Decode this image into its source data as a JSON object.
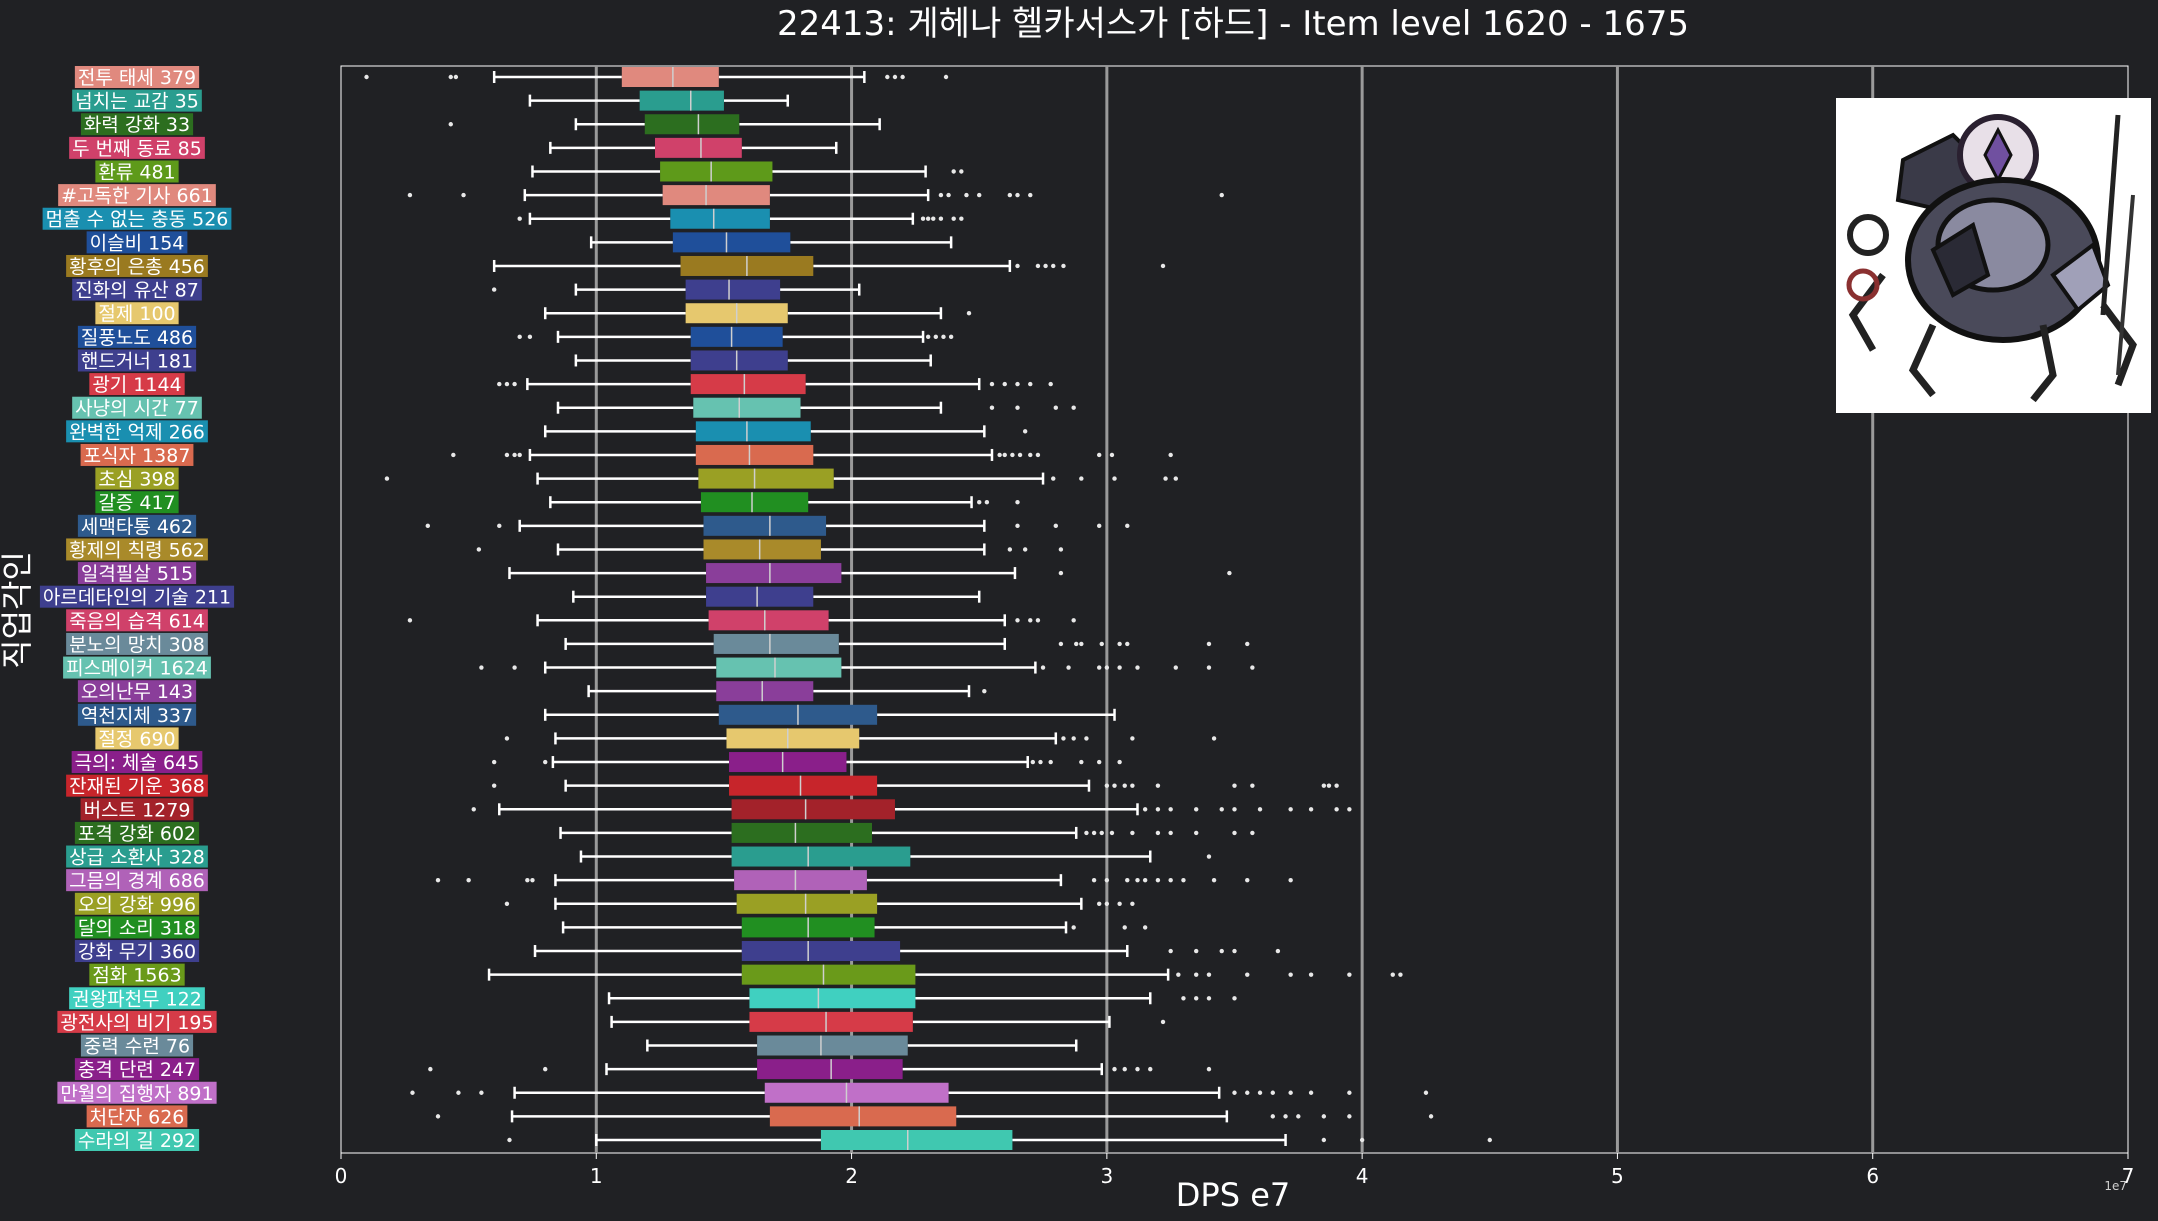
{
  "chart_data": {
    "type": "box",
    "title": "22413: 게헤나 헬카서스가 [하드] - Item level 1620 - 1675",
    "xlabel": "DPS e7",
    "ylabel": "직업각인",
    "x_exponent_label": "1e7",
    "xlim": [
      0,
      7
    ],
    "xticks": [
      0,
      1,
      2,
      3,
      4,
      5,
      6,
      7
    ],
    "grid": "vertical",
    "image_in_plot": "boss-portrait",
    "categories": [
      {
        "label": "전투 태세 379",
        "color": "#e0897e",
        "whisker_low": 0.6,
        "q1": 1.1,
        "median": 1.3,
        "q3": 1.48,
        "whisker_high": 2.05,
        "outliers": [
          0.1,
          0.43,
          0.45,
          2.14,
          2.17,
          2.2,
          2.37
        ]
      },
      {
        "label": "넘치는 교감 35",
        "color": "#2a9d8f",
        "whisker_low": 0.74,
        "q1": 1.17,
        "median": 1.37,
        "q3": 1.5,
        "whisker_high": 1.75,
        "outliers": []
      },
      {
        "label": "화력 강화 33",
        "color": "#2c6e1f",
        "whisker_low": 0.92,
        "q1": 1.19,
        "median": 1.4,
        "q3": 1.56,
        "whisker_high": 2.11,
        "outliers": [
          0.43
        ]
      },
      {
        "label": "두 번째 동료 85",
        "color": "#d0416a",
        "whisker_low": 0.82,
        "q1": 1.23,
        "median": 1.41,
        "q3": 1.57,
        "whisker_high": 1.94,
        "outliers": []
      },
      {
        "label": "환류 481",
        "color": "#5e9a1a",
        "whisker_low": 0.75,
        "q1": 1.25,
        "median": 1.45,
        "q3": 1.69,
        "whisker_high": 2.29,
        "outliers": [
          2.4,
          2.43
        ]
      },
      {
        "label": "#고독한 기사 661",
        "color": "#e0897e",
        "whisker_low": 0.72,
        "q1": 1.26,
        "median": 1.43,
        "q3": 1.68,
        "whisker_high": 2.3,
        "outliers": [
          0.27,
          0.48,
          2.35,
          2.38,
          2.45,
          2.5,
          2.62,
          2.65,
          2.7,
          3.45
        ]
      },
      {
        "label": "멈출 수 없는 충동 526",
        "color": "#1a8fb0",
        "whisker_low": 0.74,
        "q1": 1.29,
        "median": 1.46,
        "q3": 1.68,
        "whisker_high": 2.24,
        "outliers": [
          0.7,
          2.28,
          2.3,
          2.32,
          2.35,
          2.4,
          2.43
        ]
      },
      {
        "label": "이슬비 154",
        "color": "#1f4f9a",
        "whisker_low": 0.98,
        "q1": 1.3,
        "median": 1.51,
        "q3": 1.76,
        "whisker_high": 2.39,
        "outliers": []
      },
      {
        "label": "황후의 은총 456",
        "color": "#9a7a20",
        "whisker_low": 0.6,
        "q1": 1.33,
        "median": 1.59,
        "q3": 1.85,
        "whisker_high": 2.62,
        "outliers": [
          2.65,
          2.73,
          2.76,
          2.79,
          2.83,
          3.22
        ]
      },
      {
        "label": "진화의 유산 87",
        "color": "#3e3f8e",
        "whisker_low": 0.92,
        "q1": 1.35,
        "median": 1.52,
        "q3": 1.72,
        "whisker_high": 2.03,
        "outliers": [
          0.6
        ]
      },
      {
        "label": "절제 100",
        "color": "#e6c86e",
        "whisker_low": 0.8,
        "q1": 1.35,
        "median": 1.55,
        "q3": 1.75,
        "whisker_high": 2.35,
        "outliers": [
          2.46
        ]
      },
      {
        "label": "질풍노도 486",
        "color": "#1f4f9a",
        "whisker_low": 0.85,
        "q1": 1.37,
        "median": 1.53,
        "q3": 1.73,
        "whisker_high": 2.28,
        "outliers": [
          0.7,
          0.74,
          2.3,
          2.33,
          2.36,
          2.39
        ]
      },
      {
        "label": "핸드거너 181",
        "color": "#3e3f8e",
        "whisker_low": 0.92,
        "q1": 1.37,
        "median": 1.55,
        "q3": 1.75,
        "whisker_high": 2.31,
        "outliers": []
      },
      {
        "label": "광기 1144",
        "color": "#d63b48",
        "whisker_low": 0.73,
        "q1": 1.37,
        "median": 1.58,
        "q3": 1.82,
        "whisker_high": 2.5,
        "outliers": [
          0.62,
          0.65,
          0.68,
          2.55,
          2.6,
          2.65,
          2.7,
          2.78
        ]
      },
      {
        "label": "사냥의 시간 77",
        "color": "#66c2b0",
        "whisker_low": 0.85,
        "q1": 1.38,
        "median": 1.56,
        "q3": 1.8,
        "whisker_high": 2.35,
        "outliers": [
          2.55,
          2.65,
          2.8,
          2.87
        ]
      },
      {
        "label": "완벽한 억제 266",
        "color": "#1a8fb0",
        "whisker_low": 0.8,
        "q1": 1.39,
        "median": 1.59,
        "q3": 1.84,
        "whisker_high": 2.52,
        "outliers": [
          2.68
        ]
      },
      {
        "label": "포식자 1387",
        "color": "#d96a4f",
        "whisker_low": 0.74,
        "q1": 1.39,
        "median": 1.6,
        "q3": 1.85,
        "whisker_high": 2.55,
        "outliers": [
          0.44,
          0.65,
          0.68,
          0.7,
          2.58,
          2.6,
          2.63,
          2.66,
          2.7,
          2.73,
          2.97,
          3.02,
          3.25
        ]
      },
      {
        "label": "초심 398",
        "color": "#9aa024",
        "whisker_low": 0.77,
        "q1": 1.4,
        "median": 1.62,
        "q3": 1.93,
        "whisker_high": 2.75,
        "outliers": [
          0.18,
          2.79,
          2.9,
          3.03,
          3.23,
          3.27
        ]
      },
      {
        "label": "갈증 417",
        "color": "#218f21",
        "whisker_low": 0.82,
        "q1": 1.41,
        "median": 1.61,
        "q3": 1.83,
        "whisker_high": 2.47,
        "outliers": [
          2.5,
          2.53,
          2.65
        ]
      },
      {
        "label": "세맥타통 462",
        "color": "#2e5a8c",
        "whisker_low": 0.7,
        "q1": 1.42,
        "median": 1.68,
        "q3": 1.9,
        "whisker_high": 2.52,
        "outliers": [
          0.34,
          0.62,
          2.65,
          2.8,
          2.97,
          3.08
        ]
      },
      {
        "label": "황제의 칙령 562",
        "color": "#a98a2a",
        "whisker_low": 0.85,
        "q1": 1.42,
        "median": 1.64,
        "q3": 1.88,
        "whisker_high": 2.52,
        "outliers": [
          0.54,
          2.62,
          2.68,
          2.82
        ]
      },
      {
        "label": "일격필살 515",
        "color": "#8a3e9a",
        "whisker_low": 0.66,
        "q1": 1.43,
        "median": 1.68,
        "q3": 1.96,
        "whisker_high": 2.64,
        "outliers": [
          2.82,
          3.48
        ]
      },
      {
        "label": "아르데타인의 기술 211",
        "color": "#3e3f8e",
        "whisker_low": 0.91,
        "q1": 1.43,
        "median": 1.63,
        "q3": 1.85,
        "whisker_high": 2.5,
        "outliers": []
      },
      {
        "label": "죽음의 습격 614",
        "color": "#d0416a",
        "whisker_low": 0.77,
        "q1": 1.44,
        "median": 1.66,
        "q3": 1.91,
        "whisker_high": 2.6,
        "outliers": [
          0.27,
          2.65,
          2.7,
          2.73,
          2.87
        ]
      },
      {
        "label": "분노의 망치 308",
        "color": "#6a8a9a",
        "whisker_low": 0.88,
        "q1": 1.46,
        "median": 1.68,
        "q3": 1.95,
        "whisker_high": 2.6,
        "outliers": [
          2.82,
          2.88,
          2.9,
          2.98,
          3.05,
          3.08,
          3.4,
          3.55
        ]
      },
      {
        "label": "피스메이커 1624",
        "color": "#66c2b0",
        "whisker_low": 0.8,
        "q1": 1.47,
        "median": 1.7,
        "q3": 1.96,
        "whisker_high": 2.72,
        "outliers": [
          0.55,
          0.68,
          2.75,
          2.85,
          2.97,
          3.0,
          3.05,
          3.12,
          3.27,
          3.4,
          3.57
        ]
      },
      {
        "label": "오의난무 143",
        "color": "#8a3e9a",
        "whisker_low": 0.97,
        "q1": 1.47,
        "median": 1.65,
        "q3": 1.85,
        "whisker_high": 2.46,
        "outliers": [
          2.52
        ]
      },
      {
        "label": "역천지체 337",
        "color": "#2e5a8c",
        "whisker_low": 0.8,
        "q1": 1.48,
        "median": 1.79,
        "q3": 2.1,
        "whisker_high": 3.03,
        "outliers": []
      },
      {
        "label": "절정 690",
        "color": "#e6c86e",
        "whisker_low": 0.84,
        "q1": 1.51,
        "median": 1.75,
        "q3": 2.03,
        "whisker_high": 2.8,
        "outliers": [
          0.65,
          2.83,
          2.87,
          2.92,
          3.1,
          3.42
        ]
      },
      {
        "label": "극의: 체술 645",
        "color": "#8a1f8a",
        "whisker_low": 0.83,
        "q1": 1.52,
        "median": 1.73,
        "q3": 1.98,
        "whisker_high": 2.69,
        "outliers": [
          0.6,
          0.8,
          2.71,
          2.74,
          2.78,
          2.9,
          2.97,
          3.05
        ]
      },
      {
        "label": "잔재된 기운 368",
        "color": "#c7252b",
        "whisker_low": 0.88,
        "q1": 1.52,
        "median": 1.8,
        "q3": 2.1,
        "whisker_high": 2.93,
        "outliers": [
          0.6,
          3.0,
          3.03,
          3.07,
          3.1,
          3.2,
          3.5,
          3.57,
          3.85,
          3.87,
          3.9
        ]
      },
      {
        "label": "버스트 1279",
        "color": "#a3222a",
        "whisker_low": 0.62,
        "q1": 1.53,
        "median": 1.82,
        "q3": 2.17,
        "whisker_high": 3.12,
        "outliers": [
          0.52,
          3.15,
          3.2,
          3.25,
          3.35,
          3.45,
          3.5,
          3.6,
          3.72,
          3.8,
          3.9,
          3.95
        ]
      },
      {
        "label": "포격 강화 602",
        "color": "#2c6e1f",
        "whisker_low": 0.86,
        "q1": 1.53,
        "median": 1.78,
        "q3": 2.08,
        "whisker_high": 2.88,
        "outliers": [
          2.92,
          2.95,
          2.98,
          3.02,
          3.1,
          3.2,
          3.25,
          3.35,
          3.5,
          3.57
        ]
      },
      {
        "label": "상급 소환사 328",
        "color": "#2a9d8f",
        "whisker_low": 0.94,
        "q1": 1.53,
        "median": 1.83,
        "q3": 2.23,
        "whisker_high": 3.17,
        "outliers": [
          3.4
        ]
      },
      {
        "label": "그믐의 경계 686",
        "color": "#b062b8",
        "whisker_low": 0.84,
        "q1": 1.54,
        "median": 1.78,
        "q3": 2.06,
        "whisker_high": 2.82,
        "outliers": [
          0.38,
          0.5,
          0.73,
          0.75,
          2.95,
          3.0,
          3.08,
          3.12,
          3.15,
          3.2,
          3.25,
          3.3,
          3.42,
          3.55,
          3.72
        ]
      },
      {
        "label": "오의 강화 996",
        "color": "#9aa024",
        "whisker_low": 0.84,
        "q1": 1.55,
        "median": 1.82,
        "q3": 2.1,
        "whisker_high": 2.9,
        "outliers": [
          0.65,
          2.97,
          3.0,
          3.05,
          3.1
        ]
      },
      {
        "label": "달의 소리 318",
        "color": "#218f21",
        "whisker_low": 0.87,
        "q1": 1.57,
        "median": 1.83,
        "q3": 2.09,
        "whisker_high": 2.84,
        "outliers": [
          2.87,
          3.07,
          3.15
        ]
      },
      {
        "label": "강화 무기 360",
        "color": "#3e3f8e",
        "whisker_low": 0.76,
        "q1": 1.57,
        "median": 1.83,
        "q3": 2.19,
        "whisker_high": 3.08,
        "outliers": [
          3.25,
          3.35,
          3.45,
          3.5,
          3.67
        ]
      },
      {
        "label": "점화 1563",
        "color": "#6a9a1a",
        "whisker_low": 0.58,
        "q1": 1.57,
        "median": 1.89,
        "q3": 2.25,
        "whisker_high": 3.24,
        "outliers": [
          3.28,
          3.35,
          3.4,
          3.55,
          3.72,
          3.8,
          3.95,
          4.12,
          4.15
        ]
      },
      {
        "label": "권왕파천무 122",
        "color": "#40d0c0",
        "whisker_low": 1.05,
        "q1": 1.6,
        "median": 1.87,
        "q3": 2.25,
        "whisker_high": 3.17,
        "outliers": [
          3.3,
          3.35,
          3.4,
          3.5
        ]
      },
      {
        "label": "광전사의 비기 195",
        "color": "#d63b48",
        "whisker_low": 1.06,
        "q1": 1.6,
        "median": 1.9,
        "q3": 2.24,
        "whisker_high": 3.01,
        "outliers": [
          3.22
        ]
      },
      {
        "label": "중력 수련 76",
        "color": "#6a8a9a",
        "whisker_low": 1.2,
        "q1": 1.63,
        "median": 1.88,
        "q3": 2.22,
        "whisker_high": 2.88,
        "outliers": []
      },
      {
        "label": "충격 단련 247",
        "color": "#8a1f8a",
        "whisker_low": 1.04,
        "q1": 1.63,
        "median": 1.92,
        "q3": 2.2,
        "whisker_high": 2.98,
        "outliers": [
          0.35,
          0.8,
          3.03,
          3.07,
          3.12,
          3.17,
          3.4
        ]
      },
      {
        "label": "만월의 집행자 891",
        "color": "#c070c8",
        "whisker_low": 0.68,
        "q1": 1.66,
        "median": 1.98,
        "q3": 2.38,
        "whisker_high": 3.44,
        "outliers": [
          0.28,
          0.46,
          0.55,
          3.5,
          3.55,
          3.6,
          3.65,
          3.72,
          3.8,
          3.95,
          4.25
        ]
      },
      {
        "label": "처단자 626",
        "color": "#d96a4f",
        "whisker_low": 0.67,
        "q1": 1.68,
        "median": 2.03,
        "q3": 2.41,
        "whisker_high": 3.47,
        "outliers": [
          0.38,
          3.65,
          3.7,
          3.75,
          3.85,
          3.95,
          4.27
        ]
      },
      {
        "label": "수라의 길 292",
        "color": "#40c8b0",
        "whisker_low": 1.0,
        "q1": 1.88,
        "median": 2.22,
        "q3": 2.63,
        "whisker_high": 3.7,
        "outliers": [
          0.66,
          3.85,
          4.0,
          4.5
        ]
      }
    ]
  }
}
